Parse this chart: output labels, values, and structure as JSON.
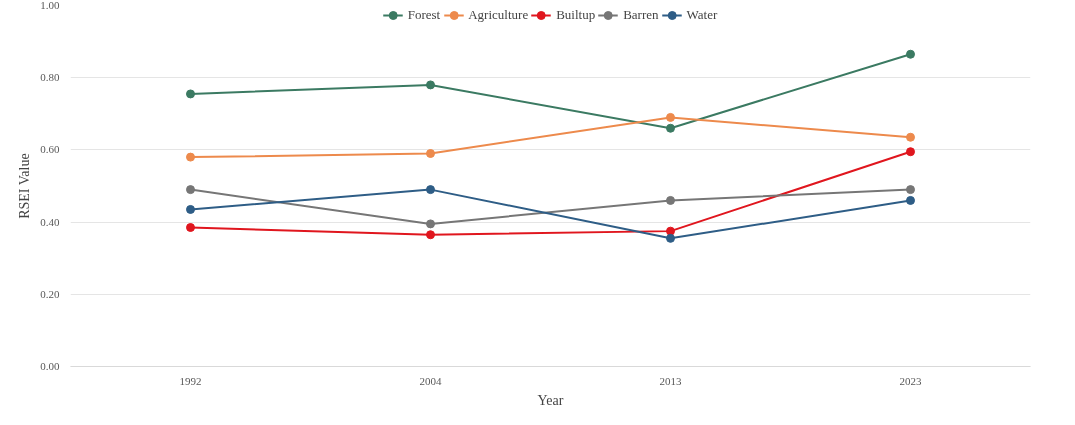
{
  "chart_data": {
    "type": "line",
    "xlabel": "Year",
    "ylabel": "RSEI Value",
    "categories": [
      "1992",
      "2004",
      "2013",
      "2023"
    ],
    "series": [
      {
        "name": "Forest",
        "color": "#3b7a62",
        "values": [
          0.755,
          0.78,
          0.66,
          0.865
        ]
      },
      {
        "name": "Agriculture",
        "color": "#ed8a4c",
        "values": [
          0.58,
          0.59,
          0.69,
          0.635
        ]
      },
      {
        "name": "Builtup",
        "color": "#e0161e",
        "values": [
          0.385,
          0.365,
          0.375,
          0.595
        ]
      },
      {
        "name": "Barren",
        "color": "#767676",
        "values": [
          0.49,
          0.395,
          0.46,
          0.49
        ]
      },
      {
        "name": "Water",
        "color": "#2e5d86",
        "values": [
          0.435,
          0.49,
          0.355,
          0.46
        ]
      }
    ],
    "ylim": [
      0,
      1
    ],
    "yticks": [
      {
        "value": 0,
        "label": "0.00"
      },
      {
        "value": 0.2,
        "label": "0.20"
      },
      {
        "value": 0.4,
        "label": "0.40"
      },
      {
        "value": 0.6,
        "label": "0.60"
      },
      {
        "value": 0.8,
        "label": "0.80"
      },
      {
        "value": 1,
        "label": "1.00"
      }
    ],
    "grid": "y",
    "legend": "top",
    "marker": "circle",
    "line_style": "solid"
  }
}
